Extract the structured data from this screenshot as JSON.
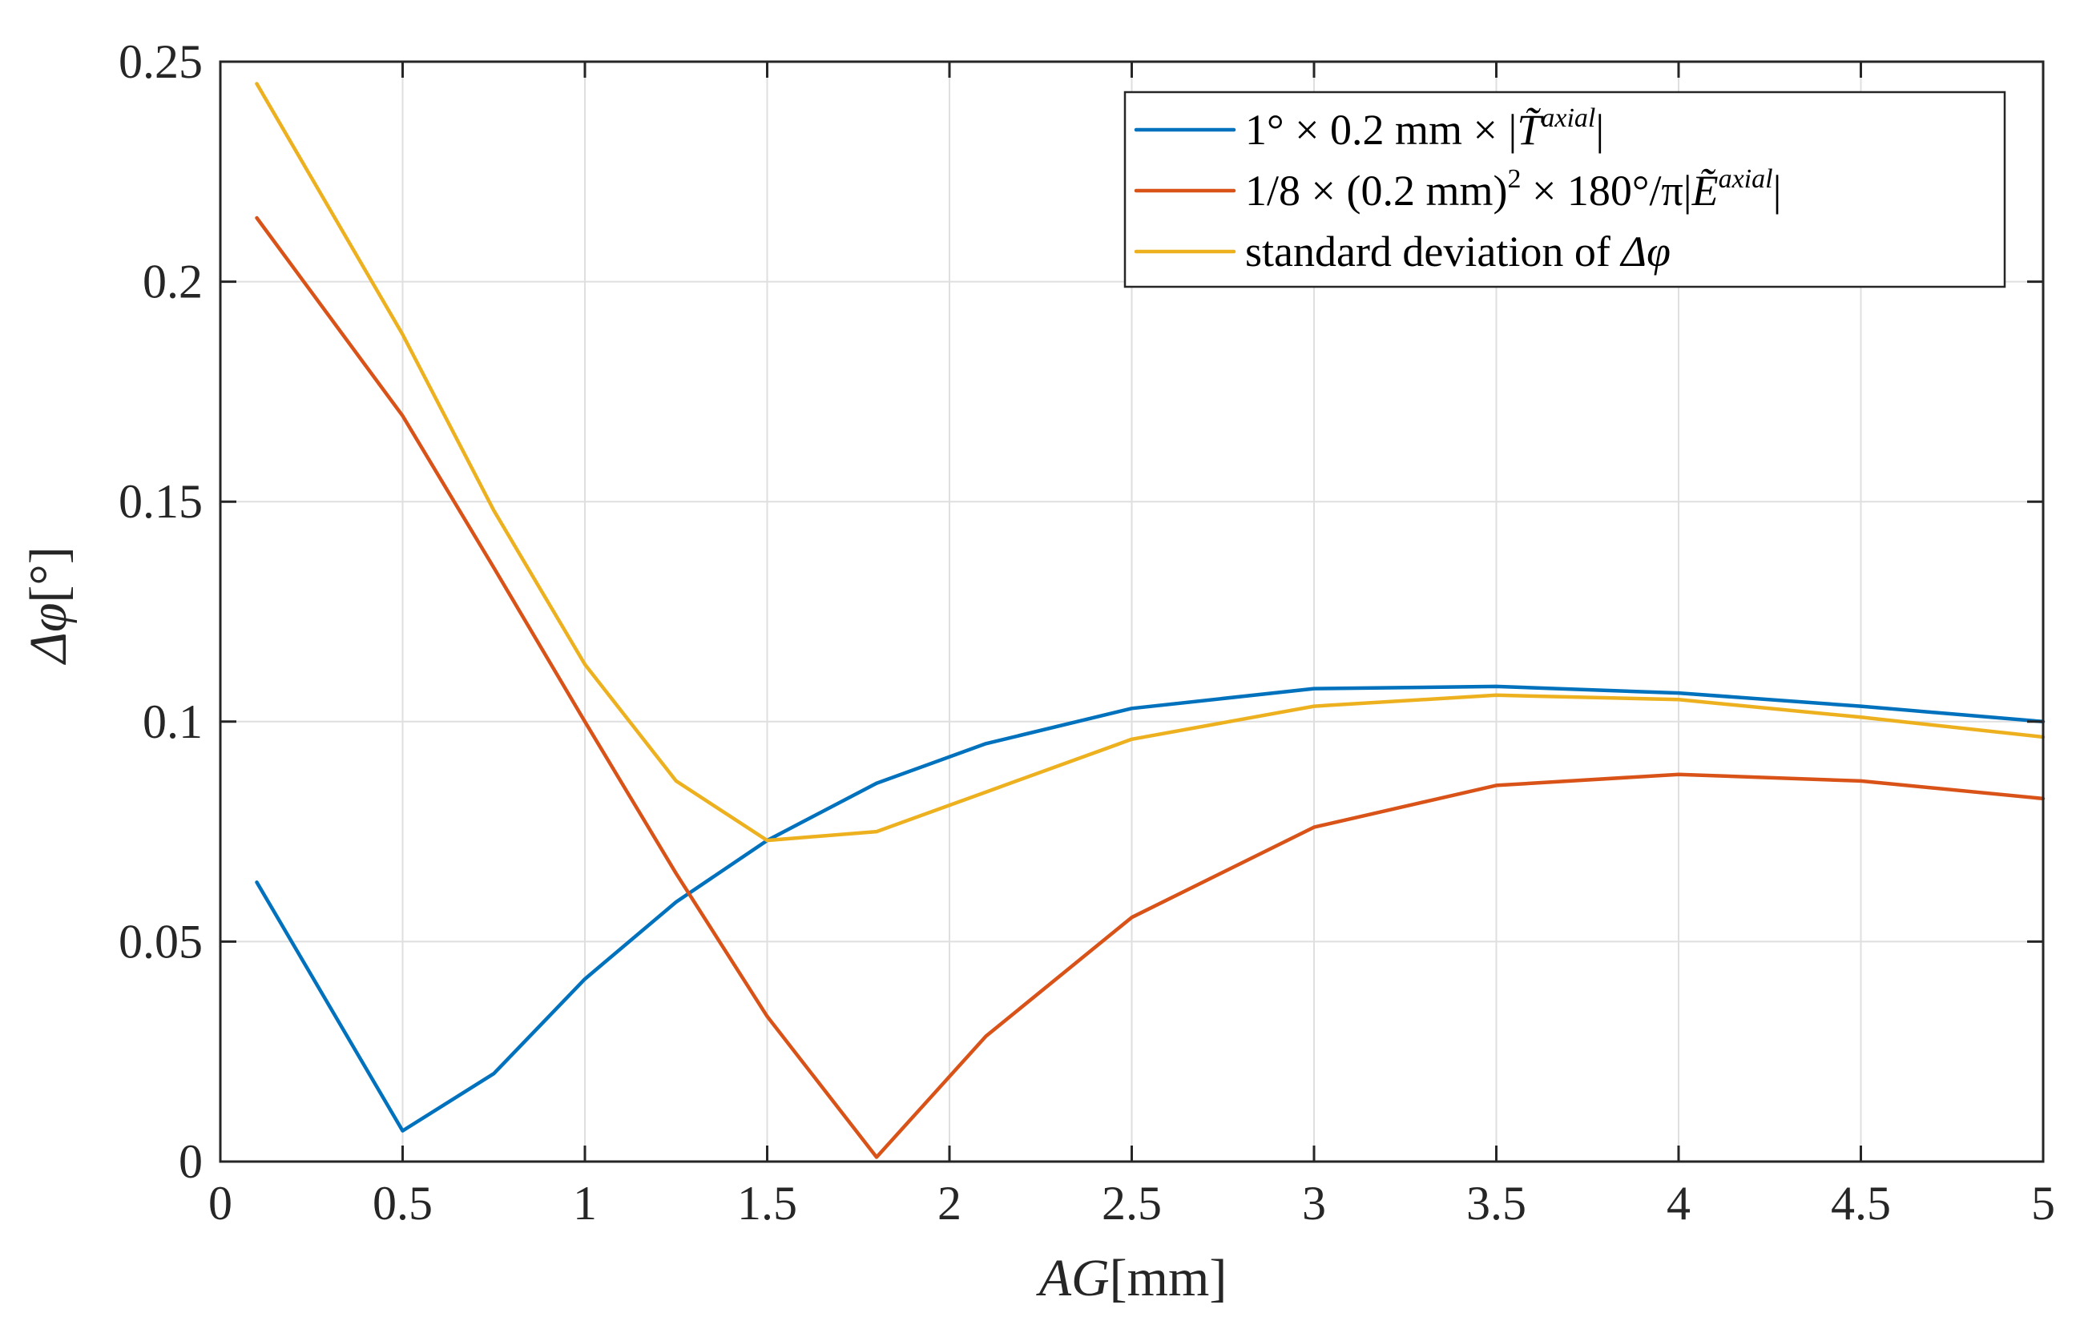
{
  "chart_data": {
    "type": "line",
    "title": "",
    "xlabel_italic": "AG",
    "xlabel_unit": "[mm]",
    "ylabel_symbol": "Δφ",
    "ylabel_unit": "[°]",
    "xlim": [
      0,
      5
    ],
    "ylim": [
      0,
      0.25
    ],
    "xticks": [
      0,
      0.5,
      1,
      1.5,
      2,
      2.5,
      3,
      3.5,
      4,
      4.5,
      5
    ],
    "xtick_labels": [
      "0",
      "0.5",
      "1",
      "1.5",
      "2",
      "2.5",
      "3",
      "3.5",
      "4",
      "4.5",
      "5"
    ],
    "yticks": [
      0,
      0.05,
      0.1,
      0.15,
      0.2,
      0.25
    ],
    "ytick_labels": [
      "0",
      "0.05",
      "0.1",
      "0.15",
      "0.2",
      "0.25"
    ],
    "grid": true,
    "legend_position": "top-right",
    "series": [
      {
        "name": "1° × 0.2 mm × |T̃axial|",
        "legend_parts": {
          "prefix": "1° × 0.2 mm × |",
          "symbol": "T̃",
          "superscript": "axial",
          "suffix": "|"
        },
        "color": "#0072BD",
        "x": [
          0.1,
          0.5,
          0.75,
          1.0,
          1.25,
          1.5,
          1.8,
          2.1,
          2.5,
          3.0,
          3.5,
          4.0,
          4.5,
          5.0
        ],
        "values": [
          0.0635,
          0.007,
          0.02,
          0.0415,
          0.059,
          0.073,
          0.086,
          0.095,
          0.103,
          0.1075,
          0.108,
          0.1065,
          0.1035,
          0.1
        ]
      },
      {
        "name": "1/8 × (0.2 mm)2 × 180°/π|Ẽaxial|",
        "legend_parts": {
          "prefix": "1/8 × (0.2 mm)",
          "power": "2",
          "middle": " × 180°/π|",
          "symbol": "Ẽ",
          "superscript": "axial",
          "suffix": "|"
        },
        "color": "#D95319",
        "x": [
          0.1,
          0.5,
          0.75,
          1.0,
          1.25,
          1.5,
          1.8,
          2.1,
          2.5,
          3.0,
          3.5,
          4.0,
          4.5,
          5.0
        ],
        "values": [
          0.2145,
          0.1695,
          0.135,
          0.1,
          0.0655,
          0.033,
          0.001,
          0.0285,
          0.0555,
          0.076,
          0.0855,
          0.088,
          0.0865,
          0.0825
        ]
      },
      {
        "name": "standard deviation of Δφ",
        "legend_parts": {
          "prefix": "standard deviation of ",
          "symbol": "Δφ"
        },
        "color": "#EDB120",
        "x": [
          0.1,
          0.5,
          0.75,
          1.0,
          1.25,
          1.5,
          1.8,
          2.1,
          2.5,
          3.0,
          3.5,
          4.0,
          4.5,
          5.0
        ],
        "values": [
          0.245,
          0.188,
          0.148,
          0.113,
          0.0865,
          0.073,
          0.075,
          0.084,
          0.096,
          0.1035,
          0.106,
          0.105,
          0.101,
          0.0965
        ]
      }
    ]
  }
}
